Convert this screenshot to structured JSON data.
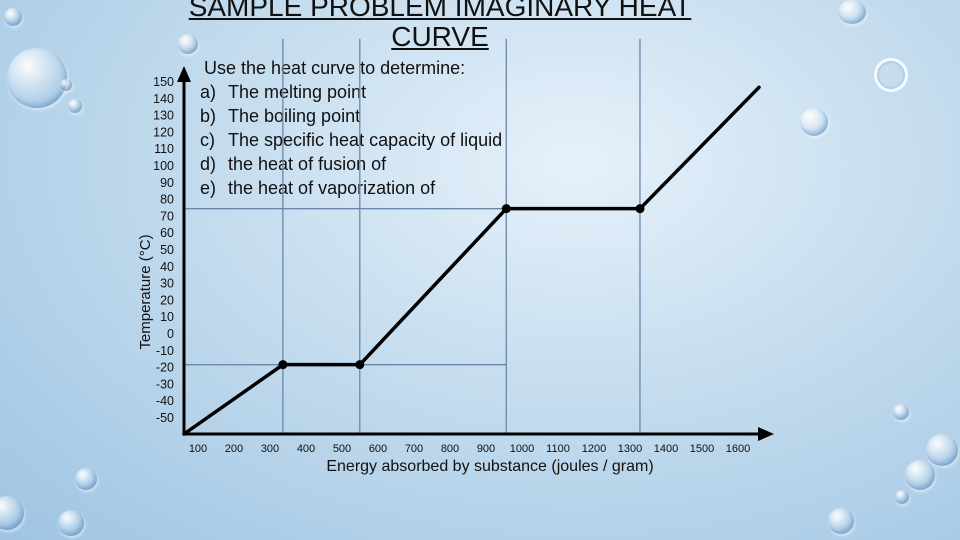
{
  "title": "SAMPLE PROBLEM IMAGINARY HEAT CURVE",
  "instructions": {
    "lead": "Use the heat curve to determine:",
    "items": [
      {
        "letter": "a)",
        "text": "The melting point"
      },
      {
        "letter": "b)",
        "text": "The boiling point"
      },
      {
        "letter": "c)",
        "text": "The specific heat capacity of liquid"
      },
      {
        "letter": "d)",
        "text": "the heat of fusion of"
      },
      {
        "letter": "e)",
        "text": "the heat of vaporization of"
      }
    ]
  },
  "chart_data": {
    "type": "line",
    "title": "",
    "xlabel": "Energy absorbed by substance (joules / gram)",
    "ylabel": "Temperature (°C)",
    "x_ticks": [
      "100",
      "200",
      "300",
      "400",
      "500",
      "600",
      "700",
      "800",
      "900",
      "1000",
      "1100",
      "1200",
      "1300",
      "1400",
      "1500",
      "1600"
    ],
    "y_ticks": [
      "150",
      "140",
      "130",
      "120",
      "110",
      "100",
      "90",
      "80",
      "70",
      "60",
      "50",
      "40",
      "30",
      "20",
      "10",
      "0",
      "-10",
      "-20",
      "-30",
      "-40",
      "-50"
    ],
    "xlim": [
      0,
      1600
    ],
    "ylim": [
      -60,
      150
    ],
    "series": [
      {
        "x": [
          0,
          270,
          480,
          880,
          1245,
          1570
        ],
        "y": [
          -60,
          -20,
          -20,
          70,
          70,
          140
        ]
      }
    ],
    "markers": [
      {
        "x": 270,
        "y": -20
      },
      {
        "x": 480,
        "y": -20
      },
      {
        "x": 880,
        "y": 70
      },
      {
        "x": 1245,
        "y": 70
      }
    ],
    "reference_lines": [
      {
        "kind": "horizontal",
        "y": -20,
        "x_to": 880
      },
      {
        "kind": "horizontal",
        "y": 70,
        "x_to": 880
      },
      {
        "kind": "vertical",
        "x": 270
      },
      {
        "kind": "vertical",
        "x": 480
      },
      {
        "kind": "vertical",
        "x": 880
      },
      {
        "kind": "vertical",
        "x": 1245
      }
    ],
    "grid": false,
    "colors": {
      "line": "#000000",
      "guide": "#6a88aa",
      "axis": "#000000"
    }
  }
}
